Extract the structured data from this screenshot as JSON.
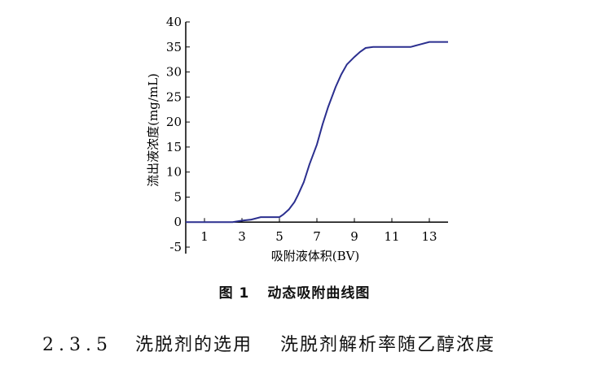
{
  "chart_data": {
    "type": "line",
    "title": "",
    "xlabel": "吸附液体积(BV)",
    "ylabel": "流出液浓度(mg/mL)",
    "xlim": [
      0,
      14
    ],
    "ylim": [
      -5,
      40
    ],
    "x_ticks": [
      1,
      3,
      5,
      7,
      9,
      11,
      13
    ],
    "y_ticks": [
      -5,
      0,
      5,
      10,
      15,
      20,
      25,
      30,
      35,
      40
    ],
    "grid": false,
    "series": [
      {
        "color": "#2b2f8f",
        "x": [
          0,
          2.5,
          3.0,
          3.5,
          4.0,
          4.5,
          5.0,
          5.2,
          5.5,
          5.8,
          6.0,
          6.3,
          6.6,
          7.0,
          7.3,
          7.6,
          8.0,
          8.3,
          8.6,
          9.0,
          9.3,
          9.6,
          10.0,
          10.5,
          11.0,
          11.5,
          12.0,
          12.5,
          13.0,
          14.0
        ],
        "y": [
          0,
          0,
          0.3,
          0.5,
          1.0,
          1.0,
          1.0,
          1.5,
          2.5,
          4.0,
          5.5,
          8.0,
          11.5,
          15.5,
          19.5,
          23.0,
          27.0,
          29.5,
          31.5,
          33.0,
          34.0,
          34.8,
          35.0,
          35.0,
          35.0,
          35.0,
          35.0,
          35.5,
          36.0,
          36.0
        ]
      }
    ]
  },
  "caption": {
    "figure_number": "图 1",
    "figure_title": "动态吸附曲线图"
  },
  "body_text": {
    "section_number": "2.3.5",
    "section_heading": "洗脱剂的选用",
    "sentence": "洗脱剂解析率随乙醇浓度"
  }
}
